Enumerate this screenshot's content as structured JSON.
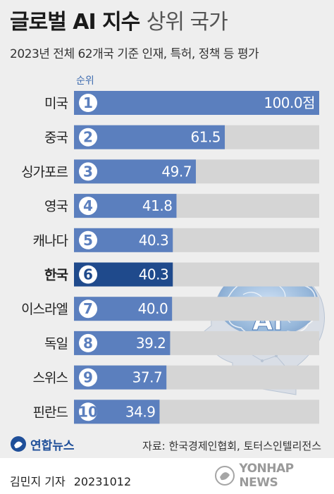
{
  "header": {
    "title": "글로벌 AI 지수",
    "title_suffix": "상위 국가",
    "subtitle": "2023년 전체 62개국 기준 인재, 특허, 정책 등 평가",
    "rank_label": "순위"
  },
  "chart_data": {
    "type": "bar",
    "orientation": "horizontal",
    "categories": [
      "미국",
      "중국",
      "싱가포르",
      "영국",
      "캐나다",
      "한국",
      "이스라엘",
      "독일",
      "스위스",
      "핀란드"
    ],
    "ranks": [
      "1",
      "2",
      "3",
      "4",
      "5",
      "6",
      "7",
      "8",
      "9",
      "10"
    ],
    "values": [
      100.0,
      61.5,
      49.7,
      41.8,
      40.3,
      40.3,
      40.0,
      39.2,
      37.7,
      34.9
    ],
    "value_labels": [
      "100.0점",
      "61.5",
      "49.7",
      "41.8",
      "40.3",
      "40.3",
      "40.0",
      "39.2",
      "37.7",
      "34.9"
    ],
    "xlim": [
      0,
      100
    ],
    "highlight": "한국",
    "colors": {
      "bar": "#5b7fbe",
      "bar_highlight": "#1f4a8c",
      "track": "#d5d5d5",
      "rank_circle": "#ffffff"
    }
  },
  "illustration": {
    "label": "AI",
    "icon": "ai-brain-head-icon"
  },
  "footer": {
    "logo_text": "연합뉴스",
    "source": "자료: 한국경제인협회, 토터스인텔리전스",
    "byline": "김민지 기자",
    "date": "20231012",
    "watermark": "YONHAP NEWS"
  }
}
